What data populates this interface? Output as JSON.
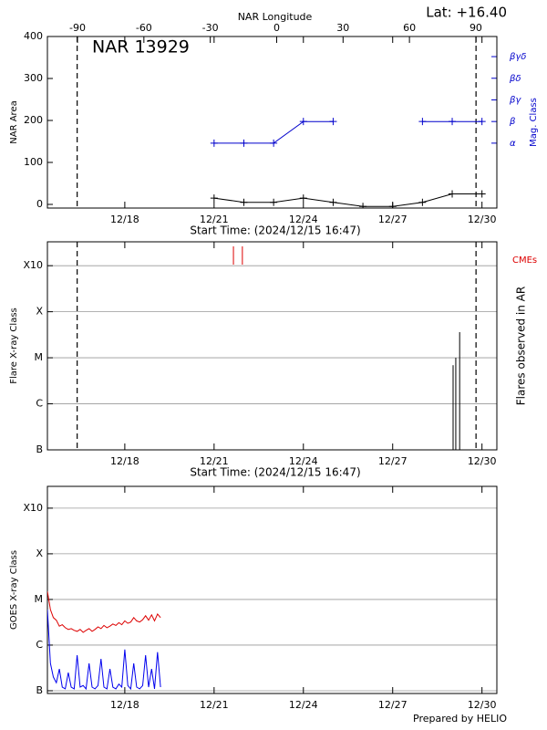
{
  "chart_data": [
    {
      "type": "line",
      "title": "NAR 13929",
      "annotation": "Lat: +16.40",
      "xlabel_top": "NAR Longitude",
      "ylabel": "NAR Area",
      "y2label": "Mag. Class",
      "subtitle": "Start Time: (2024/12/15 16:47)",
      "xlim": [
        15.4,
        30.5
      ],
      "xticks": [
        {
          "value": 18,
          "label": "12/18"
        },
        {
          "value": 21,
          "label": "12/21"
        },
        {
          "value": 24,
          "label": "12/24"
        },
        {
          "value": 27,
          "label": "12/27"
        },
        {
          "value": 30,
          "label": "12/30"
        }
      ],
      "x2lim": [
        -103.6,
        99.5
      ],
      "x2ticks": [
        -90,
        -60,
        -30,
        0,
        30,
        60,
        90
      ],
      "ylim": [
        -8.7,
        400
      ],
      "yticks": [
        0,
        100,
        200,
        300,
        400
      ],
      "y2lim": [
        -2,
        5.93
      ],
      "y2ticks": [
        {
          "value": 1,
          "label": "α"
        },
        {
          "value": 2,
          "label": "β"
        },
        {
          "value": 3,
          "label": "βγ"
        },
        {
          "value": 4,
          "label": "βδ"
        },
        {
          "value": 5,
          "label": "βγδ"
        }
      ],
      "grid": false,
      "markers": true,
      "dashed_lines": [
        16.4,
        29.8
      ],
      "x": [
        21,
        22,
        23,
        24,
        25,
        26,
        27,
        28,
        29,
        30
      ],
      "series": [
        {
          "color": "#000000",
          "values": [
            15,
            5,
            5,
            15,
            5,
            -5,
            -5,
            5,
            25,
            25
          ]
        },
        {
          "color": "#0000cc",
          "axis": "y2",
          "values": [
            1,
            1,
            1,
            2,
            2,
            null,
            null,
            2,
            2,
            2
          ]
        }
      ]
    },
    {
      "type": "event",
      "ylabel": "Flare X-ray Class",
      "y2label": "Flares observed in AR",
      "subtitle": "Start Time: (2024/12/15 16:47)",
      "xlim": [
        15.4,
        30.5
      ],
      "xticks": [
        {
          "value": 18,
          "label": "12/18"
        },
        {
          "value": 21,
          "label": "12/21"
        },
        {
          "value": 24,
          "label": "12/24"
        },
        {
          "value": 27,
          "label": "12/27"
        },
        {
          "value": 30,
          "label": "12/30"
        }
      ],
      "log_scale": true,
      "ylim": [
        1e-07,
        0.0033
      ],
      "yticks": [
        {
          "value": 1e-07,
          "label": "B"
        },
        {
          "value": 1e-06,
          "label": "C"
        },
        {
          "value": 1e-05,
          "label": "M"
        },
        {
          "value": 0.0001,
          "label": "X"
        },
        {
          "value": 0.001,
          "label": "X10"
        }
      ],
      "grid": true,
      "dashed_lines": [
        16.4,
        29.8
      ],
      "flares": {
        "color": "#000000",
        "x": [
          29.03,
          29.12,
          29.25
        ],
        "values": [
          6.9e-06,
          1e-05,
          3.6e-05
        ]
      },
      "cmes": {
        "name": "CMEs",
        "color": "#dd0000",
        "x": [
          21.65,
          21.95
        ]
      }
    },
    {
      "type": "line",
      "ylabel": "GOES X-ray Class",
      "footnote": "Prepared by HELIO",
      "xlim": [
        15.4,
        30.5
      ],
      "xticks": [
        {
          "value": 18,
          "label": "12/18"
        },
        {
          "value": 21,
          "label": "12/21"
        },
        {
          "value": 24,
          "label": "12/24"
        },
        {
          "value": 27,
          "label": "12/27"
        },
        {
          "value": 30,
          "label": "12/30"
        }
      ],
      "log_scale": true,
      "ylim": [
        8.7e-08,
        0.003
      ],
      "yticks": [
        {
          "value": 1e-07,
          "label": "B"
        },
        {
          "value": 1e-06,
          "label": "C"
        },
        {
          "value": 1e-05,
          "label": "M"
        },
        {
          "value": 0.0001,
          "label": "X"
        },
        {
          "value": 0.001,
          "label": "X10"
        }
      ],
      "grid": true,
      "markers": false,
      "x": [
        15.4,
        15.5,
        15.6,
        15.7,
        15.8,
        15.9,
        16.0,
        16.1,
        16.2,
        16.3,
        16.4,
        16.5,
        16.6,
        16.7,
        16.8,
        16.9,
        17.0,
        17.1,
        17.2,
        17.3,
        17.4,
        17.5,
        17.6,
        17.7,
        17.8,
        17.9,
        18.0,
        18.1,
        18.2,
        18.3,
        18.4,
        18.5,
        18.6,
        18.7,
        18.8,
        18.9,
        19.0,
        19.1,
        19.2
      ],
      "series": [
        {
          "color": "#dd0000",
          "values": [
            1.5e-05,
            6e-06,
            4e-06,
            3.5e-06,
            2.6e-06,
            2.8e-06,
            2.4e-06,
            2.2e-06,
            2.3e-06,
            2.1e-06,
            2e-06,
            2.2e-06,
            1.9e-06,
            2.1e-06,
            2.3e-06,
            2e-06,
            2.2e-06,
            2.5e-06,
            2.3e-06,
            2.7e-06,
            2.4e-06,
            2.6e-06,
            2.9e-06,
            2.7e-06,
            3.1e-06,
            2.8e-06,
            3.4e-06,
            3e-06,
            3.2e-06,
            4e-06,
            3.4e-06,
            3.2e-06,
            3.6e-06,
            4.4e-06,
            3.5e-06,
            4.6e-06,
            3.4e-06,
            4.8e-06,
            4e-06
          ]
        },
        {
          "color": "#0000ee",
          "values": [
            6e-06,
            4e-07,
            2e-07,
            1.5e-07,
            3e-07,
            1.2e-07,
            1.1e-07,
            2.5e-07,
            1.2e-07,
            1.1e-07,
            6e-07,
            1.2e-07,
            1.3e-07,
            1.1e-07,
            4e-07,
            1.2e-07,
            1.1e-07,
            1.3e-07,
            5e-07,
            1.2e-07,
            1.1e-07,
            3e-07,
            1.2e-07,
            1.1e-07,
            1.4e-07,
            1.2e-07,
            8e-07,
            1.3e-07,
            1.1e-07,
            4e-07,
            1.2e-07,
            1.1e-07,
            1.3e-07,
            6e-07,
            1.2e-07,
            3e-07,
            1.1e-07,
            7e-07,
            1.2e-07
          ]
        }
      ]
    }
  ]
}
